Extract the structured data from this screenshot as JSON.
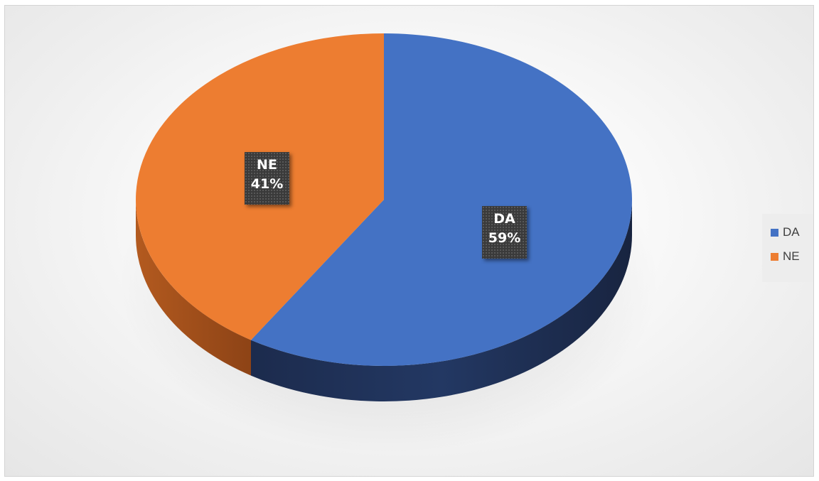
{
  "chart_data": {
    "type": "pie",
    "style": "3d",
    "title": "",
    "slices": [
      {
        "label": "DA",
        "percent_label": "59%",
        "value": 59,
        "color": "#4472C4",
        "side_color": "#1F2E52"
      },
      {
        "label": "NE",
        "percent_label": "41%",
        "value": 41,
        "color": "#ED7D31",
        "side_color": "#A9521C"
      }
    ],
    "legend": {
      "position": "right",
      "entries": [
        "DA",
        "NE"
      ]
    },
    "data_labels": true
  }
}
